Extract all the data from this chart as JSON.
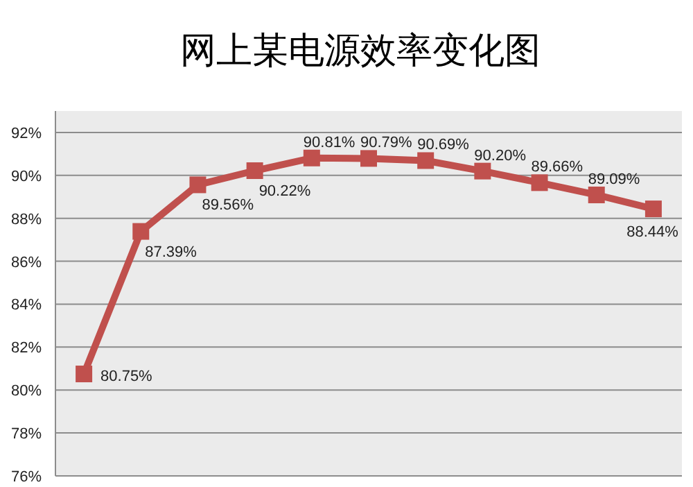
{
  "chart_data": {
    "type": "line",
    "title": "网上某电源效率变化图",
    "categories": [
      null,
      null,
      null,
      null,
      null,
      null,
      null,
      null,
      null,
      null,
      null
    ],
    "series": [
      {
        "color": "#c0504d",
        "values": [
          80.75,
          87.39,
          89.56,
          90.22,
          90.81,
          90.79,
          90.69,
          90.2,
          89.66,
          89.09,
          88.44
        ],
        "value_labels": [
          "80.75%",
          "87.39%",
          "89.56%",
          "90.22%",
          "90.81%",
          "90.79%",
          "90.69%",
          "90.20%",
          "89.66%",
          "89.09%",
          "88.44%"
        ]
      }
    ],
    "ylim": [
      76,
      93
    ],
    "yticks": [
      {
        "value": 76,
        "label": "76%"
      },
      {
        "value": 78,
        "label": "78%"
      },
      {
        "value": 80,
        "label": "80%"
      },
      {
        "value": 82,
        "label": "82%"
      },
      {
        "value": 84,
        "label": "84%"
      },
      {
        "value": 86,
        "label": "86%"
      },
      {
        "value": 88,
        "label": "88%"
      },
      {
        "value": 90,
        "label": "90%"
      },
      {
        "value": 92,
        "label": "92%"
      }
    ],
    "grid": "y",
    "marker": "square",
    "line_style": "solid",
    "tick_labels": "y"
  }
}
